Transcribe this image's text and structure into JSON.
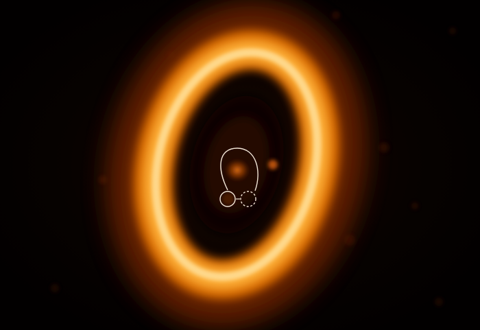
{
  "image": {
    "subject": "protoplanetary-disk",
    "background_color": "#040100",
    "ring_colors": {
      "outer_glow": "#7a2a00",
      "ring_mid": "#e0760a",
      "ring_bright": "#ffd27a",
      "ring_core": "#fff0c8",
      "inner_blob": "#c85a08"
    },
    "annotation_color": "#f2e6d8",
    "marker_styles": {
      "left_marker": "solid",
      "right_marker": "dashed"
    }
  }
}
